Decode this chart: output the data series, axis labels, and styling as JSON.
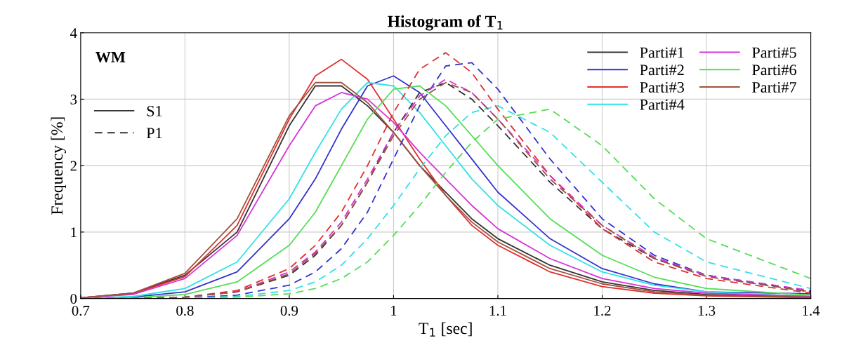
{
  "chart_data": {
    "type": "line",
    "title": "Histogram of T$_{1}$",
    "xlabel": "T$_{1}$ [sec]",
    "ylabel": "Frequency [%]",
    "annotations": [
      "WM",
      "S1",
      "P1"
    ],
    "x": [
      0.7,
      0.75,
      0.8,
      0.85,
      0.9,
      0.925,
      0.95,
      0.975,
      1.0,
      1.025,
      1.05,
      1.075,
      1.1,
      1.15,
      1.2,
      1.25,
      1.3,
      1.4
    ],
    "xlim": [
      0.7,
      1.4
    ],
    "xticks": [
      0.7,
      0.8,
      0.9,
      1,
      1.1,
      1.2,
      1.3,
      1.4
    ],
    "ylim": [
      0,
      4
    ],
    "yticks": [
      0,
      1,
      2,
      3,
      4
    ],
    "grid": true,
    "legend": "top right",
    "marker": "none",
    "series": [
      {
        "name": "Parti#1",
        "color": "#333333",
        "line_style": "solid",
        "values": [
          0.01,
          0.08,
          0.35,
          1.0,
          2.6,
          3.2,
          3.2,
          2.9,
          2.5,
          2.0,
          1.6,
          1.2,
          0.9,
          0.5,
          0.25,
          0.12,
          0.06,
          0.02
        ]
      },
      {
        "name": "Parti#2",
        "color": "#3333cc",
        "line_style": "solid",
        "values": [
          0,
          0.02,
          0.1,
          0.4,
          1.2,
          1.8,
          2.55,
          3.2,
          3.35,
          3.1,
          2.6,
          2.1,
          1.6,
          0.9,
          0.45,
          0.22,
          0.1,
          0.07
        ]
      },
      {
        "name": "Parti#3",
        "color": "#e03030",
        "line_style": "solid",
        "values": [
          0.01,
          0.07,
          0.33,
          1.1,
          2.7,
          3.35,
          3.6,
          3.3,
          2.7,
          2.1,
          1.55,
          1.1,
          0.8,
          0.4,
          0.18,
          0.08,
          0.04,
          0.01
        ]
      },
      {
        "name": "Parti#4",
        "color": "#33e0e8",
        "line_style": "solid",
        "values": [
          0,
          0.03,
          0.15,
          0.55,
          1.5,
          2.2,
          2.85,
          3.25,
          3.2,
          2.8,
          2.3,
          1.8,
          1.4,
          0.8,
          0.4,
          0.2,
          0.1,
          0.03
        ]
      },
      {
        "name": "Parti#5",
        "color": "#d633d6",
        "line_style": "solid",
        "values": [
          0.01,
          0.06,
          0.3,
          0.95,
          2.3,
          2.9,
          3.1,
          3.0,
          2.65,
          2.2,
          1.8,
          1.4,
          1.05,
          0.6,
          0.3,
          0.15,
          0.08,
          0.03
        ]
      },
      {
        "name": "Parti#6",
        "color": "#55dd55",
        "line_style": "solid",
        "values": [
          0,
          0.01,
          0.06,
          0.25,
          0.8,
          1.3,
          2.0,
          2.7,
          3.15,
          3.2,
          2.9,
          2.45,
          2.0,
          1.2,
          0.65,
          0.32,
          0.15,
          0.05
        ]
      },
      {
        "name": "Parti#7",
        "color": "#a0523d",
        "line_style": "solid",
        "values": [
          0.01,
          0.08,
          0.38,
          1.2,
          2.75,
          3.25,
          3.25,
          2.95,
          2.5,
          2.0,
          1.55,
          1.15,
          0.85,
          0.45,
          0.22,
          0.1,
          0.05,
          0.02
        ]
      },
      {
        "color": "#333333",
        "line_style": "dashed",
        "values": [
          0,
          0,
          0.02,
          0.1,
          0.35,
          0.65,
          1.1,
          1.75,
          2.5,
          3.1,
          3.25,
          3.0,
          2.6,
          1.75,
          1.05,
          0.6,
          0.35,
          0.1
        ]
      },
      {
        "color": "#3333cc",
        "line_style": "dashed",
        "values": [
          0,
          0,
          0.01,
          0.05,
          0.2,
          0.4,
          0.75,
          1.3,
          2.1,
          2.9,
          3.5,
          3.55,
          3.15,
          2.1,
          1.2,
          0.65,
          0.35,
          0.1
        ]
      },
      {
        "color": "#e03030",
        "line_style": "dashed",
        "values": [
          0,
          0,
          0.02,
          0.12,
          0.45,
          0.8,
          1.3,
          2.0,
          2.8,
          3.45,
          3.7,
          3.4,
          2.85,
          1.85,
          1.05,
          0.55,
          0.3,
          0.08
        ]
      },
      {
        "color": "#33e0e8",
        "line_style": "dashed",
        "values": [
          0,
          0,
          0.01,
          0.03,
          0.12,
          0.25,
          0.5,
          0.9,
          1.4,
          1.95,
          2.45,
          2.8,
          2.9,
          2.5,
          1.75,
          1.0,
          0.55,
          0.15
        ]
      },
      {
        "color": "#d633d6",
        "line_style": "dashed",
        "values": [
          0,
          0,
          0.02,
          0.1,
          0.4,
          0.7,
          1.15,
          1.8,
          2.5,
          3.05,
          3.3,
          3.1,
          2.7,
          1.85,
          1.1,
          0.62,
          0.35,
          0.12
        ]
      },
      {
        "color": "#55dd55",
        "line_style": "dashed",
        "values": [
          0,
          0,
          0,
          0.02,
          0.07,
          0.15,
          0.3,
          0.55,
          0.95,
          1.4,
          1.9,
          2.35,
          2.7,
          2.85,
          2.3,
          1.5,
          0.9,
          0.3
        ]
      },
      {
        "color": "#a0523d",
        "line_style": "dashed",
        "values": [
          0,
          0,
          0.02,
          0.1,
          0.37,
          0.68,
          1.1,
          1.75,
          2.45,
          3.0,
          3.25,
          3.1,
          2.7,
          1.8,
          1.1,
          0.6,
          0.33,
          0.1
        ]
      }
    ]
  }
}
